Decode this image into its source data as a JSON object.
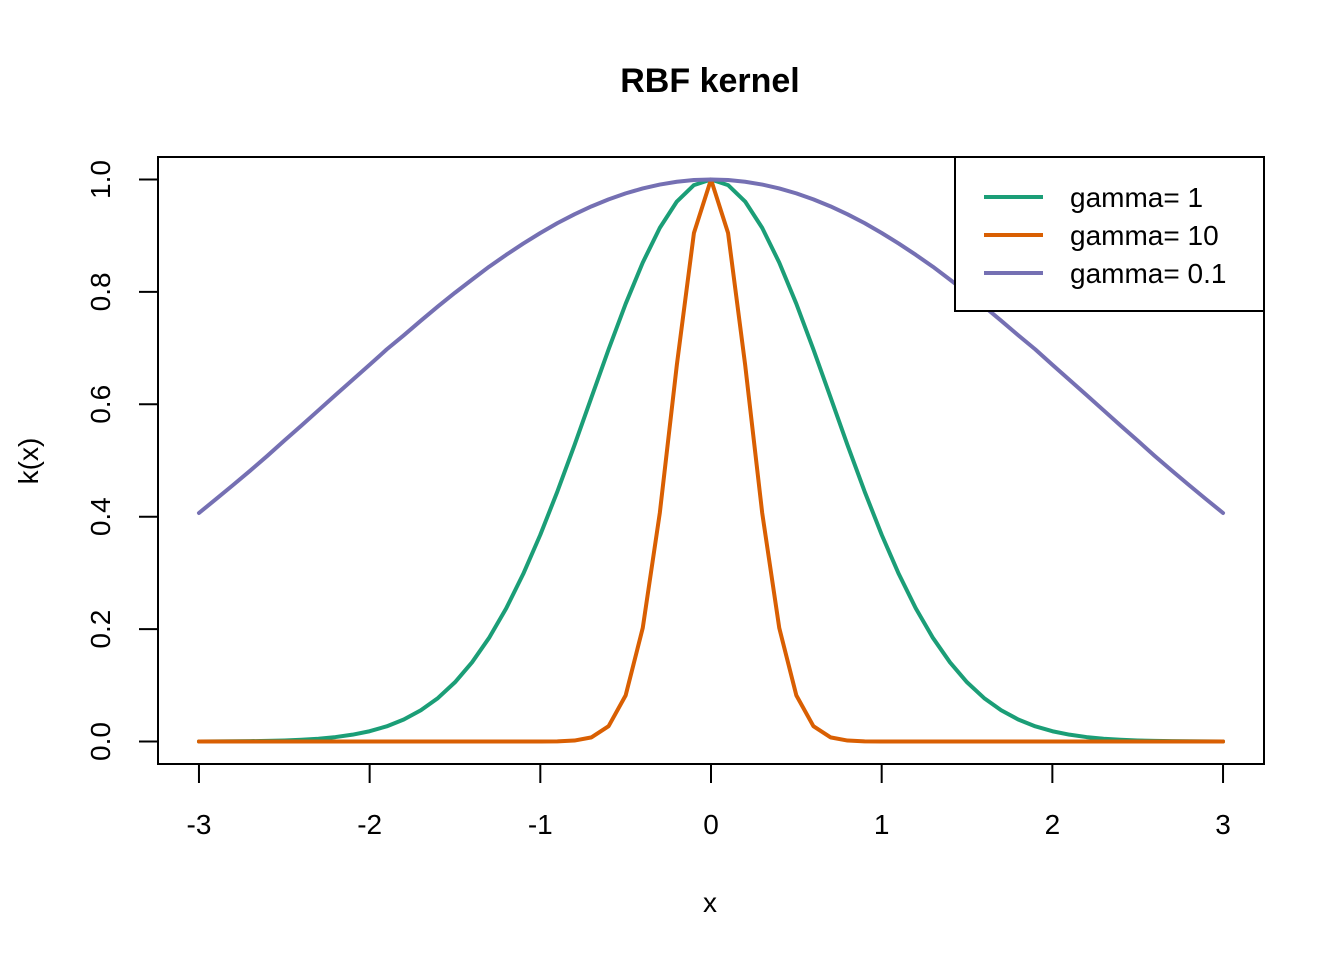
{
  "chart_data": {
    "type": "line",
    "title": "RBF kernel",
    "xlabel": "x",
    "ylabel": "k(x)",
    "xlim": [
      -3.24,
      3.24
    ],
    "ylim": [
      -0.04,
      1.04
    ],
    "xticks": [
      -3,
      -2,
      -1,
      0,
      1,
      2,
      3
    ],
    "xtick_labels": [
      "-3",
      "-2",
      "-1",
      "0",
      "1",
      "2",
      "3"
    ],
    "yticks": [
      0,
      0.2,
      0.4,
      0.6,
      0.8,
      1
    ],
    "ytick_labels": [
      "0.0",
      "0.2",
      "0.4",
      "0.6",
      "0.8",
      "1.0"
    ],
    "grid": false,
    "legend_position": "top-right",
    "x": [
      -3,
      -2.9,
      -2.8,
      -2.7,
      -2.6,
      -2.5,
      -2.4,
      -2.3,
      -2.2,
      -2.1,
      -2,
      -1.9,
      -1.8,
      -1.7,
      -1.6,
      -1.5,
      -1.4,
      -1.3,
      -1.2,
      -1.1,
      -1,
      -0.9,
      -0.8,
      -0.7,
      -0.6,
      -0.5,
      -0.4,
      -0.3,
      -0.2,
      -0.1,
      0,
      0.1,
      0.2,
      0.3,
      0.4,
      0.5,
      0.6,
      0.7,
      0.8,
      0.9,
      1,
      1.1,
      1.2,
      1.3,
      1.4,
      1.5,
      1.6,
      1.7,
      1.8,
      1.9,
      2,
      2.1,
      2.2,
      2.3,
      2.4,
      2.5,
      2.6,
      2.7,
      2.8,
      2.9,
      3
    ],
    "series": [
      {
        "name": "gamma= 1",
        "color": "#1b9e77",
        "values": [
          0.0001,
          0.0002,
          0.0004,
          0.0007,
          0.0012,
          0.0019,
          0.0032,
          0.005,
          0.0079,
          0.0122,
          0.0183,
          0.027,
          0.0392,
          0.0556,
          0.0773,
          0.1054,
          0.1409,
          0.1845,
          0.2369,
          0.2982,
          0.3679,
          0.4449,
          0.5273,
          0.6126,
          0.6977,
          0.7788,
          0.8521,
          0.9139,
          0.9608,
          0.99,
          1,
          0.99,
          0.9608,
          0.9139,
          0.8521,
          0.7788,
          0.6977,
          0.6126,
          0.5273,
          0.4449,
          0.3679,
          0.2982,
          0.2369,
          0.1845,
          0.1409,
          0.1054,
          0.0773,
          0.0556,
          0.0392,
          0.027,
          0.0183,
          0.0122,
          0.0079,
          0.005,
          0.0032,
          0.0019,
          0.0012,
          0.0007,
          0.0004,
          0.0002,
          0.0001
        ]
      },
      {
        "name": "gamma= 10",
        "color": "#d95f02",
        "values": [
          0,
          0,
          0,
          0,
          0,
          0,
          0,
          0,
          0,
          0,
          0,
          0,
          0,
          0,
          0,
          0,
          0,
          0,
          0,
          0,
          0,
          0.0003,
          0.0017,
          0.0074,
          0.0273,
          0.0821,
          0.2019,
          0.4066,
          0.6703,
          0.9048,
          1,
          0.9048,
          0.6703,
          0.4066,
          0.2019,
          0.0821,
          0.0273,
          0.0074,
          0.0017,
          0.0003,
          0,
          0,
          0,
          0,
          0,
          0,
          0,
          0,
          0,
          0,
          0,
          0,
          0,
          0,
          0,
          0,
          0,
          0,
          0,
          0,
          0
        ]
      },
      {
        "name": "gamma= 0.1",
        "color": "#7570b3",
        "values": [
          0.4066,
          0.4313,
          0.4564,
          0.4819,
          0.5081,
          0.5353,
          0.5621,
          0.5893,
          0.6166,
          0.6434,
          0.6703,
          0.6977,
          0.7228,
          0.7488,
          0.7741,
          0.7985,
          0.8218,
          0.8448,
          0.8659,
          0.886,
          0.9048,
          0.9223,
          0.938,
          0.9522,
          0.9646,
          0.9753,
          0.9841,
          0.991,
          0.996,
          0.999,
          1,
          0.999,
          0.996,
          0.991,
          0.9841,
          0.9753,
          0.9646,
          0.9522,
          0.938,
          0.9223,
          0.9048,
          0.886,
          0.8659,
          0.8448,
          0.8218,
          0.7985,
          0.7741,
          0.7488,
          0.7228,
          0.6977,
          0.6703,
          0.6434,
          0.6166,
          0.5893,
          0.5621,
          0.5353,
          0.5081,
          0.4819,
          0.4564,
          0.4313,
          0.4066
        ]
      }
    ]
  }
}
